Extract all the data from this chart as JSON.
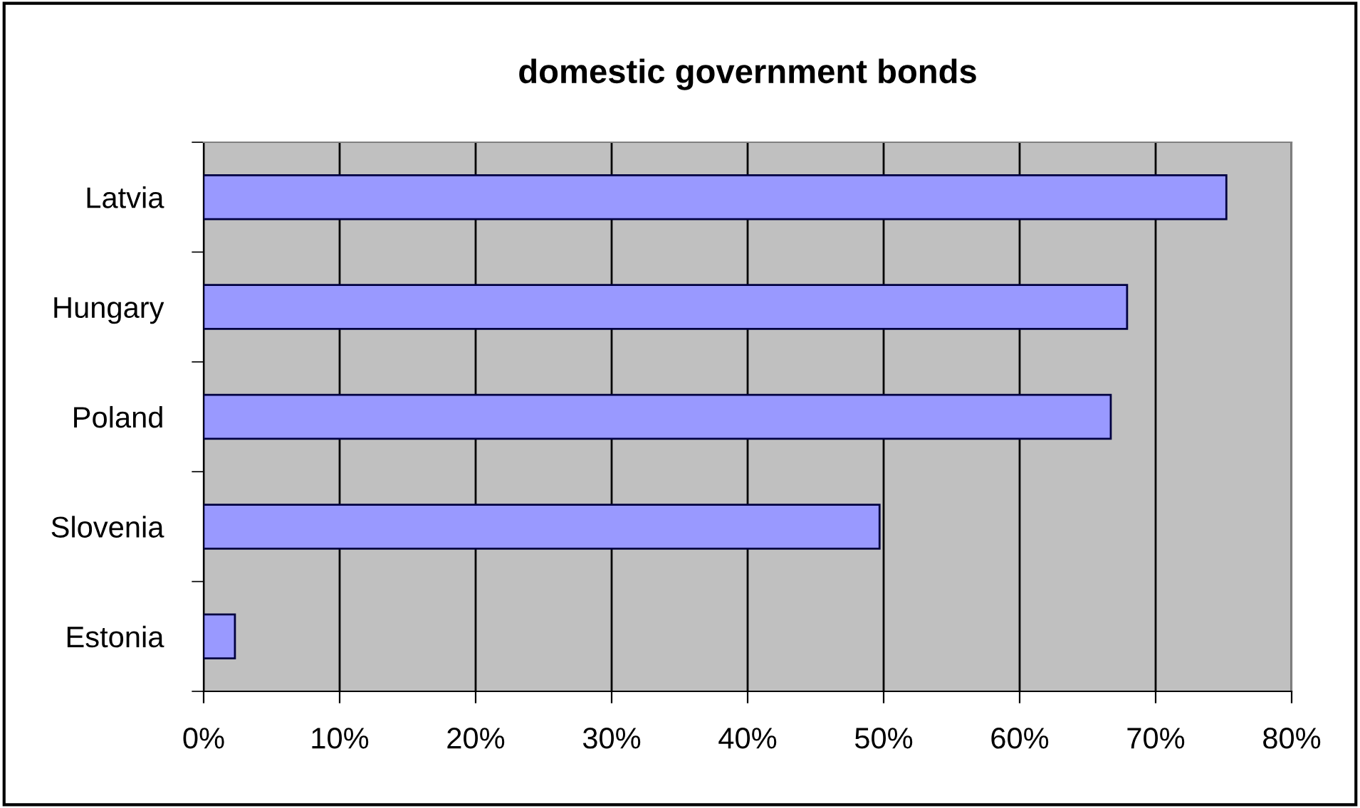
{
  "chart_data": {
    "type": "bar",
    "orientation": "horizontal",
    "title": "domestic government bonds",
    "categories": [
      "Latvia",
      "Hungary",
      "Poland",
      "Slovenia",
      "Estonia"
    ],
    "values": [
      75.2,
      67.9,
      66.7,
      49.7,
      2.3
    ],
    "color": "#9999ff",
    "xlim": [
      0,
      80
    ],
    "xticks": [
      {
        "value": 0,
        "label": "0%"
      },
      {
        "value": 10,
        "label": "10%"
      },
      {
        "value": 20,
        "label": "20%"
      },
      {
        "value": 30,
        "label": "30%"
      },
      {
        "value": 40,
        "label": "40%"
      },
      {
        "value": 50,
        "label": "50%"
      },
      {
        "value": 60,
        "label": "60%"
      },
      {
        "value": 70,
        "label": "70%"
      },
      {
        "value": 80,
        "label": "80%"
      }
    ],
    "grid": "x",
    "legend": false
  }
}
